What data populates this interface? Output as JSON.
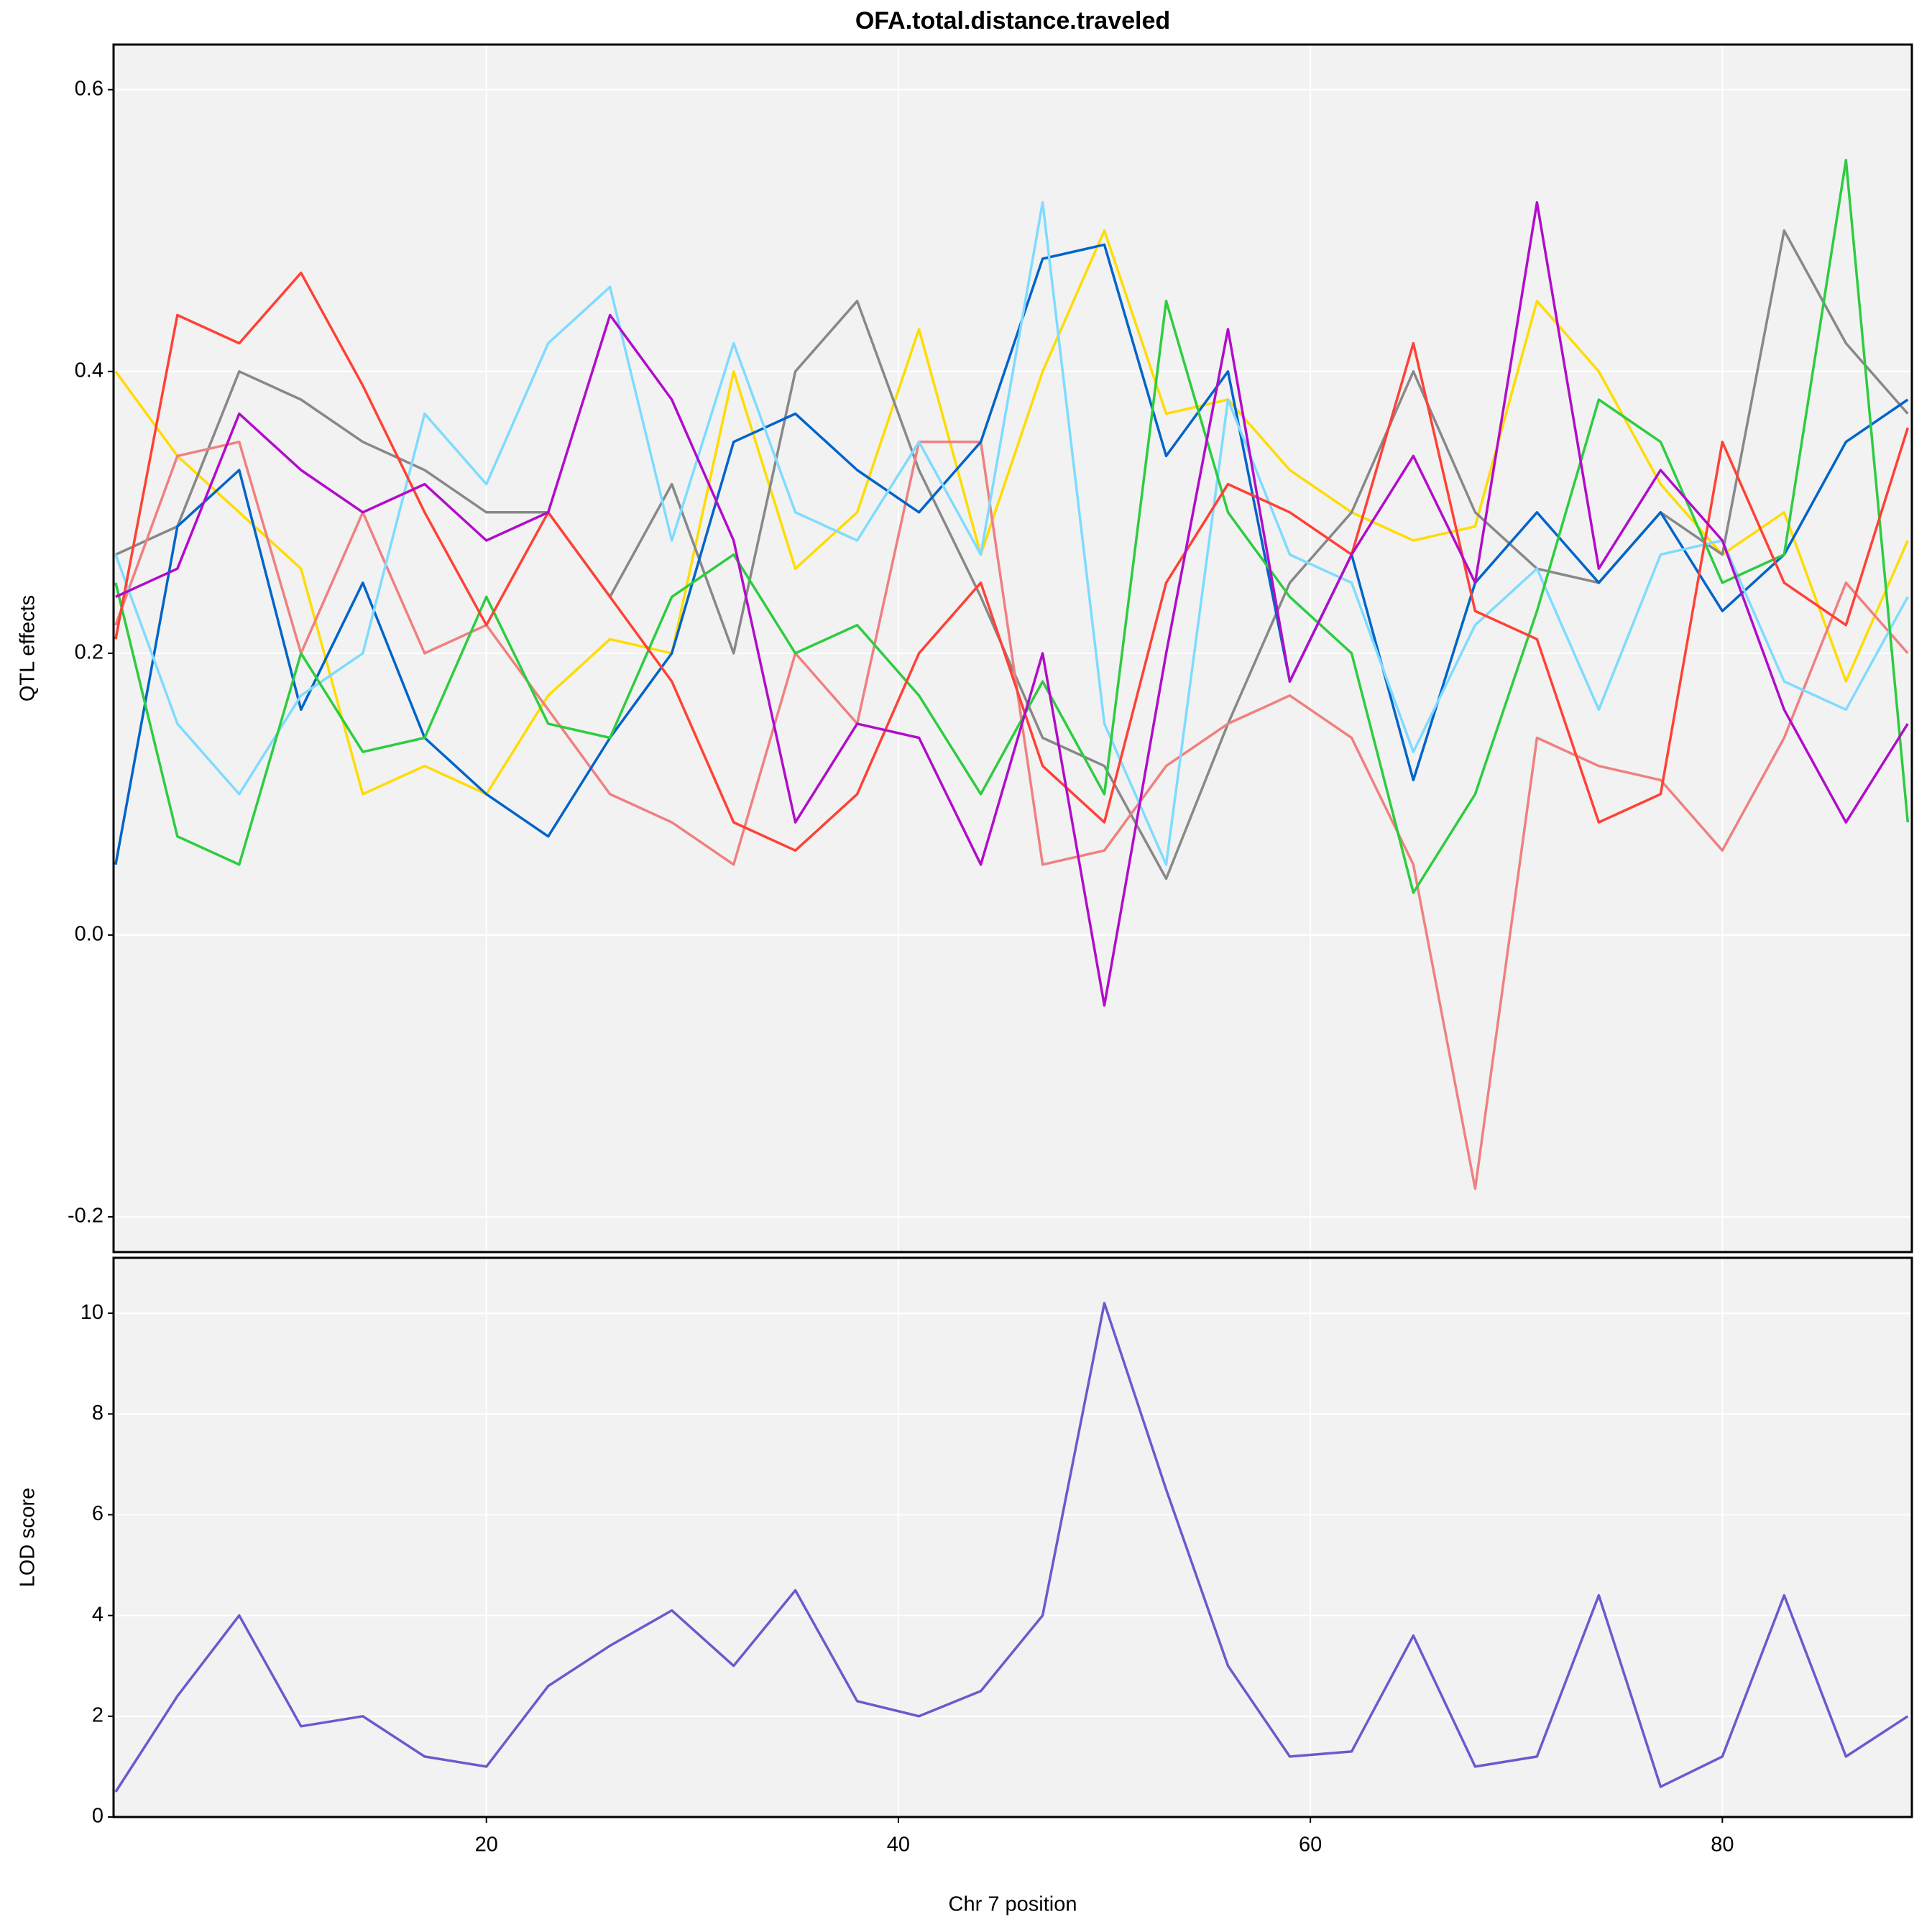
{
  "chart_data": [
    {
      "type": "line",
      "title": "OFA.total.distance.traveled",
      "ylabel": "QTL effects",
      "x": [
        2,
        5,
        8,
        11,
        14,
        17,
        20,
        23,
        26,
        29,
        32,
        35,
        38,
        41,
        44,
        47,
        50,
        53,
        56,
        59,
        62,
        65,
        68,
        71,
        74,
        77,
        80,
        83,
        86,
        89
      ],
      "xlim": [
        1.9,
        89.2
      ],
      "xticks": [
        20,
        40,
        60,
        80
      ],
      "ylim": [
        -0.225,
        0.632
      ],
      "yticks": [
        -0.2,
        {
          "value": 0,
          "label": "0.0"
        },
        0.2,
        0.4,
        0.6
      ],
      "grid": true,
      "series": [
        {
          "color": "#FFDC00",
          "values": [
            0.4,
            0.34,
            0.3,
            0.26,
            0.1,
            0.12,
            0.1,
            0.17,
            0.21,
            0.2,
            0.4,
            0.26,
            0.3,
            0.43,
            0.27,
            0.4,
            0.5,
            0.37,
            0.38,
            0.33,
            0.3,
            0.28,
            0.29,
            0.45,
            0.4,
            0.32,
            0.27,
            0.3,
            0.18,
            0.28
          ]
        },
        {
          "color": "#888888",
          "values": [
            0.27,
            0.29,
            0.4,
            0.38,
            0.35,
            0.33,
            0.3,
            0.3,
            0.24,
            0.32,
            0.2,
            0.4,
            0.45,
            0.33,
            0.24,
            0.14,
            0.12,
            0.04,
            0.15,
            0.25,
            0.3,
            0.4,
            0.3,
            0.26,
            0.25,
            0.3,
            0.27,
            0.5,
            0.42,
            0.37
          ]
        },
        {
          "color": "#F08080",
          "values": [
            0.22,
            0.34,
            0.35,
            0.2,
            0.3,
            0.2,
            0.22,
            0.16,
            0.1,
            0.08,
            0.05,
            0.2,
            0.15,
            0.35,
            0.35,
            0.05,
            0.06,
            0.12,
            0.15,
            0.17,
            0.14,
            0.05,
            -0.18,
            0.14,
            0.12,
            0.11,
            0.06,
            0.14,
            0.25,
            0.2
          ]
        },
        {
          "color": "#0064C9",
          "values": [
            0.05,
            0.29,
            0.33,
            0.16,
            0.25,
            0.14,
            0.1,
            0.07,
            0.14,
            0.2,
            0.35,
            0.37,
            0.33,
            0.3,
            0.35,
            0.48,
            0.49,
            0.34,
            0.4,
            0.18,
            0.27,
            0.11,
            0.25,
            0.3,
            0.25,
            0.3,
            0.23,
            0.27,
            0.35,
            0.38
          ]
        },
        {
          "color": "#7FDBFF",
          "values": [
            0.27,
            0.15,
            0.1,
            0.17,
            0.2,
            0.37,
            0.32,
            0.42,
            0.46,
            0.28,
            0.42,
            0.3,
            0.28,
            0.35,
            0.27,
            0.52,
            0.15,
            0.05,
            0.38,
            0.27,
            0.25,
            0.13,
            0.22,
            0.26,
            0.16,
            0.27,
            0.28,
            0.18,
            0.16,
            0.24
          ]
        },
        {
          "color": "#2ECC40",
          "values": [
            0.25,
            0.07,
            0.05,
            0.2,
            0.13,
            0.14,
            0.24,
            0.15,
            0.14,
            0.24,
            0.27,
            0.2,
            0.22,
            0.17,
            0.1,
            0.18,
            0.1,
            0.45,
            0.3,
            0.24,
            0.2,
            0.03,
            0.1,
            0.23,
            0.38,
            0.35,
            0.25,
            0.27,
            0.55,
            0.08
          ]
        },
        {
          "color": "#FF4136",
          "values": [
            0.21,
            0.44,
            0.42,
            0.47,
            0.39,
            0.3,
            0.22,
            0.3,
            0.24,
            0.18,
            0.08,
            0.06,
            0.1,
            0.2,
            0.25,
            0.12,
            0.08,
            0.25,
            0.32,
            0.3,
            0.27,
            0.42,
            0.23,
            0.21,
            0.08,
            0.1,
            0.35,
            0.25,
            0.22,
            0.36
          ]
        },
        {
          "color": "#B10DC9",
          "values": [
            0.24,
            0.26,
            0.37,
            0.33,
            0.3,
            0.32,
            0.28,
            0.3,
            0.44,
            0.38,
            0.28,
            0.08,
            0.15,
            0.14,
            0.05,
            0.2,
            -0.05,
            0.2,
            0.43,
            0.18,
            0.27,
            0.34,
            0.25,
            0.52,
            0.26,
            0.33,
            0.28,
            0.16,
            0.08,
            0.15
          ]
        }
      ]
    },
    {
      "type": "line",
      "ylabel": "LOD score",
      "xlabel": "Chr 7 position",
      "x": [
        2,
        5,
        8,
        11,
        14,
        17,
        20,
        23,
        26,
        29,
        32,
        35,
        38,
        41,
        44,
        47,
        50,
        53,
        56,
        59,
        62,
        65,
        68,
        71,
        74,
        77,
        80,
        83,
        86,
        89
      ],
      "xlim": [
        1.9,
        89.2
      ],
      "xticks": [
        20,
        40,
        60,
        80
      ],
      "ylim": [
        0,
        11.1
      ],
      "yticks": [
        0,
        2,
        4,
        6,
        8,
        10
      ],
      "grid": true,
      "series": [
        {
          "color": "#6A5ACD",
          "values": [
            0.5,
            2.4,
            4.0,
            1.8,
            2.0,
            1.2,
            1.0,
            2.6,
            3.4,
            4.1,
            3.0,
            4.5,
            2.3,
            2.0,
            2.5,
            4.0,
            10.2,
            6.5,
            3.0,
            1.2,
            1.3,
            3.6,
            1.0,
            1.2,
            4.4,
            0.6,
            1.2,
            4.4,
            1.2,
            2.0
          ]
        }
      ]
    }
  ]
}
